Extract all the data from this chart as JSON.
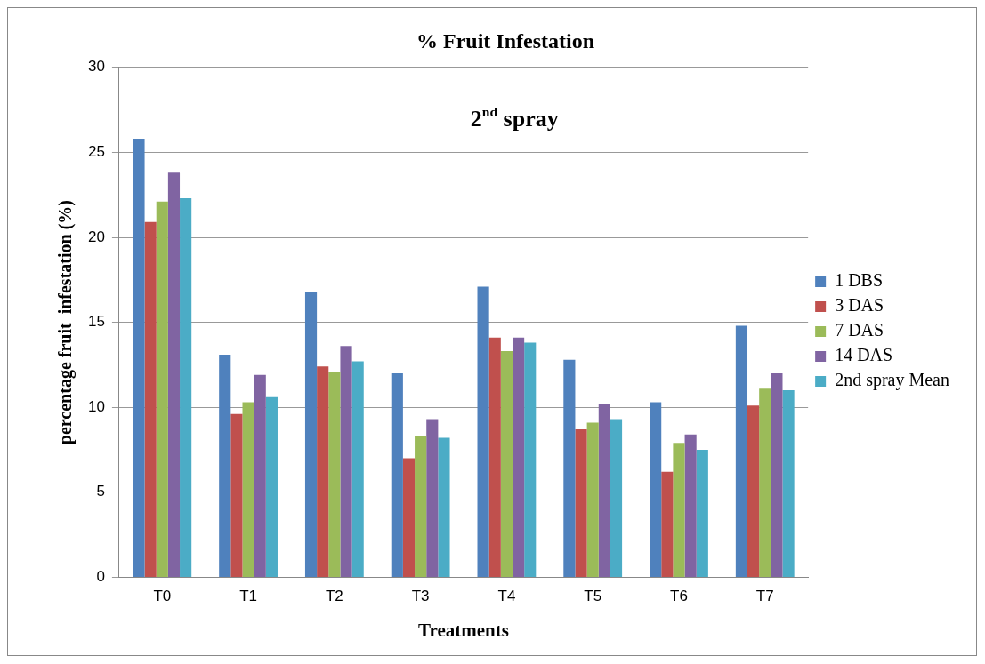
{
  "chart_data": {
    "type": "bar",
    "title": "% Fruit Infestation",
    "xlabel": "Treatments",
    "ylabel": "percentage fruit  infestation (%)",
    "annotations": [
      "2$^{nd}$ spray"
    ],
    "categories": [
      "T0",
      "T1",
      "T2",
      "T3",
      "T4",
      "T5",
      "T6",
      "T7"
    ],
    "series": [
      {
        "name": "1 DBS",
        "color": "#4f81bd",
        "values": [
          25.8,
          13.1,
          16.8,
          12.0,
          17.1,
          12.8,
          10.3,
          14.8
        ]
      },
      {
        "name": "3 DAS",
        "color": "#c0504d",
        "values": [
          20.9,
          9.6,
          12.4,
          7.0,
          14.1,
          8.7,
          6.2,
          10.1
        ]
      },
      {
        "name": "7 DAS",
        "color": "#9bbb59",
        "values": [
          22.1,
          10.3,
          12.1,
          8.3,
          13.3,
          9.1,
          7.9,
          11.1
        ]
      },
      {
        "name": "14 DAS",
        "color": "#8064a2",
        "values": [
          23.8,
          11.9,
          13.6,
          9.3,
          14.1,
          10.2,
          8.4,
          12.0
        ]
      },
      {
        "name": "2nd spray Mean",
        "color": "#4bacc6",
        "values": [
          22.3,
          10.6,
          12.7,
          8.2,
          13.8,
          9.3,
          7.5,
          11.0
        ]
      }
    ],
    "ylim": [
      0,
      30
    ],
    "yticks": [
      0,
      5,
      10,
      15,
      20,
      25,
      30
    ],
    "grid": "y",
    "legend": "right"
  }
}
